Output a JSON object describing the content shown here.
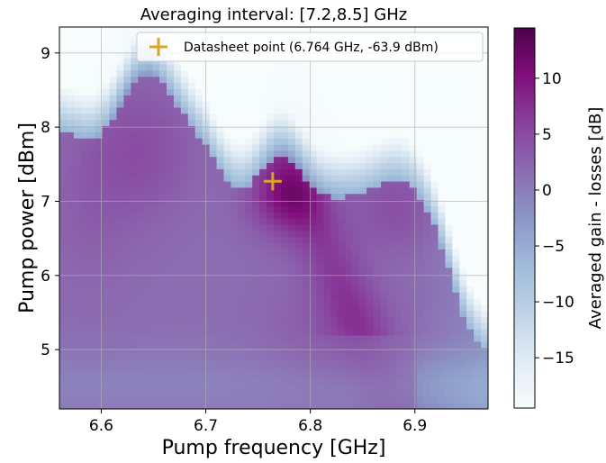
{
  "chart_data": {
    "type": "heatmap",
    "title": "Averaging interval: [7.2,8.5] GHz",
    "xlabel": "Pump frequency [GHz]",
    "ylabel": "Pump power [dBm]",
    "colorbar_label": "Averaged gain - losses [dB]",
    "xlim": [
      6.56,
      6.97
    ],
    "ylim": [
      4.2,
      9.35
    ],
    "x_ticks": [
      6.6,
      6.7,
      6.8,
      6.9
    ],
    "x_tick_labels": [
      "6.6",
      "6.7",
      "6.8",
      "6.9"
    ],
    "y_ticks": [
      5,
      6,
      7,
      8,
      9
    ],
    "y_tick_labels": [
      "5",
      "6",
      "7",
      "8",
      "9"
    ],
    "colorbar_range": [
      -19.5,
      14.5
    ],
    "colorbar_ticks": [
      10,
      5,
      0,
      -5,
      -10,
      -15
    ],
    "colorbar_tick_labels": [
      "10",
      "5",
      "0",
      "−5",
      "−10",
      "−15"
    ],
    "colormap": [
      "#f7fcfd",
      "#e0ecf4",
      "#bfd3e6",
      "#9ebcda",
      "#8c96c6",
      "#8c6bb1",
      "#88419d",
      "#810f7c",
      "#4d004b"
    ],
    "grid": true,
    "legend_position": "top-right",
    "ridges": [
      {
        "center_x": 6.59,
        "center_y": 7.0,
        "sigma_x": 0.045,
        "sigma_y": 1.2,
        "amplitude": 1.5
      },
      {
        "center_x": 6.64,
        "center_y": 7.7,
        "sigma_x": 0.05,
        "sigma_y": 0.9,
        "amplitude": 3.0
      },
      {
        "center_x": 6.775,
        "center_y": 7.05,
        "sigma_x": 0.035,
        "sigma_y": 0.5,
        "amplitude": 7.0
      },
      {
        "center_x": 6.88,
        "center_y": 6.9,
        "sigma_x": 0.04,
        "sigma_y": 0.55,
        "amplitude": 3.0
      },
      {
        "center_x": 6.82,
        "center_y": 5.2,
        "sigma_x": 0.06,
        "sigma_y": 0.8,
        "amplitude": 2.0
      }
    ],
    "series": [
      {
        "name": "Datasheet point (6.764 GHz, -63.9 dBm)",
        "type": "marker",
        "marker": "+",
        "color": "#DAA520",
        "x": 6.764,
        "y": 7.27
      }
    ]
  }
}
